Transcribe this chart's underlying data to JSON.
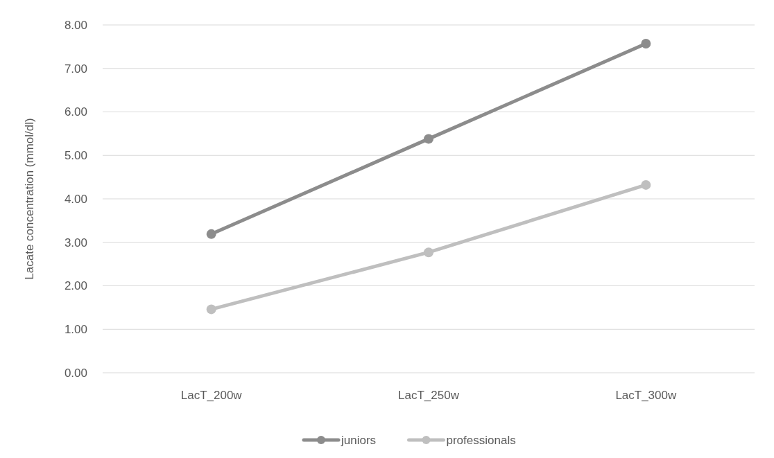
{
  "chart_data": {
    "type": "line",
    "ylabel": "Lacate concentration (mmol/dl)",
    "categories": [
      "LacT_200w",
      "LacT_250w",
      "LacT_300w"
    ],
    "series": [
      {
        "name": "juniors",
        "color": "#8c8c8c",
        "values": [
          3.19,
          5.38,
          7.57
        ]
      },
      {
        "name": "professionals",
        "color": "#bfbfbf",
        "values": [
          1.46,
          2.77,
          4.32
        ]
      }
    ],
    "ylim": [
      0,
      8
    ],
    "yticks": [
      {
        "value": 0,
        "label": "0.00"
      },
      {
        "value": 1,
        "label": "1.00"
      },
      {
        "value": 2,
        "label": "2.00"
      },
      {
        "value": 3,
        "label": "3.00"
      },
      {
        "value": 4,
        "label": "4.00"
      },
      {
        "value": 5,
        "label": "5.00"
      },
      {
        "value": 6,
        "label": "6.00"
      },
      {
        "value": 7,
        "label": "7.00"
      },
      {
        "value": 8,
        "label": "8.00"
      }
    ],
    "grid": "y",
    "legend": "bottom",
    "marker": "circle",
    "line_style": "solid"
  }
}
